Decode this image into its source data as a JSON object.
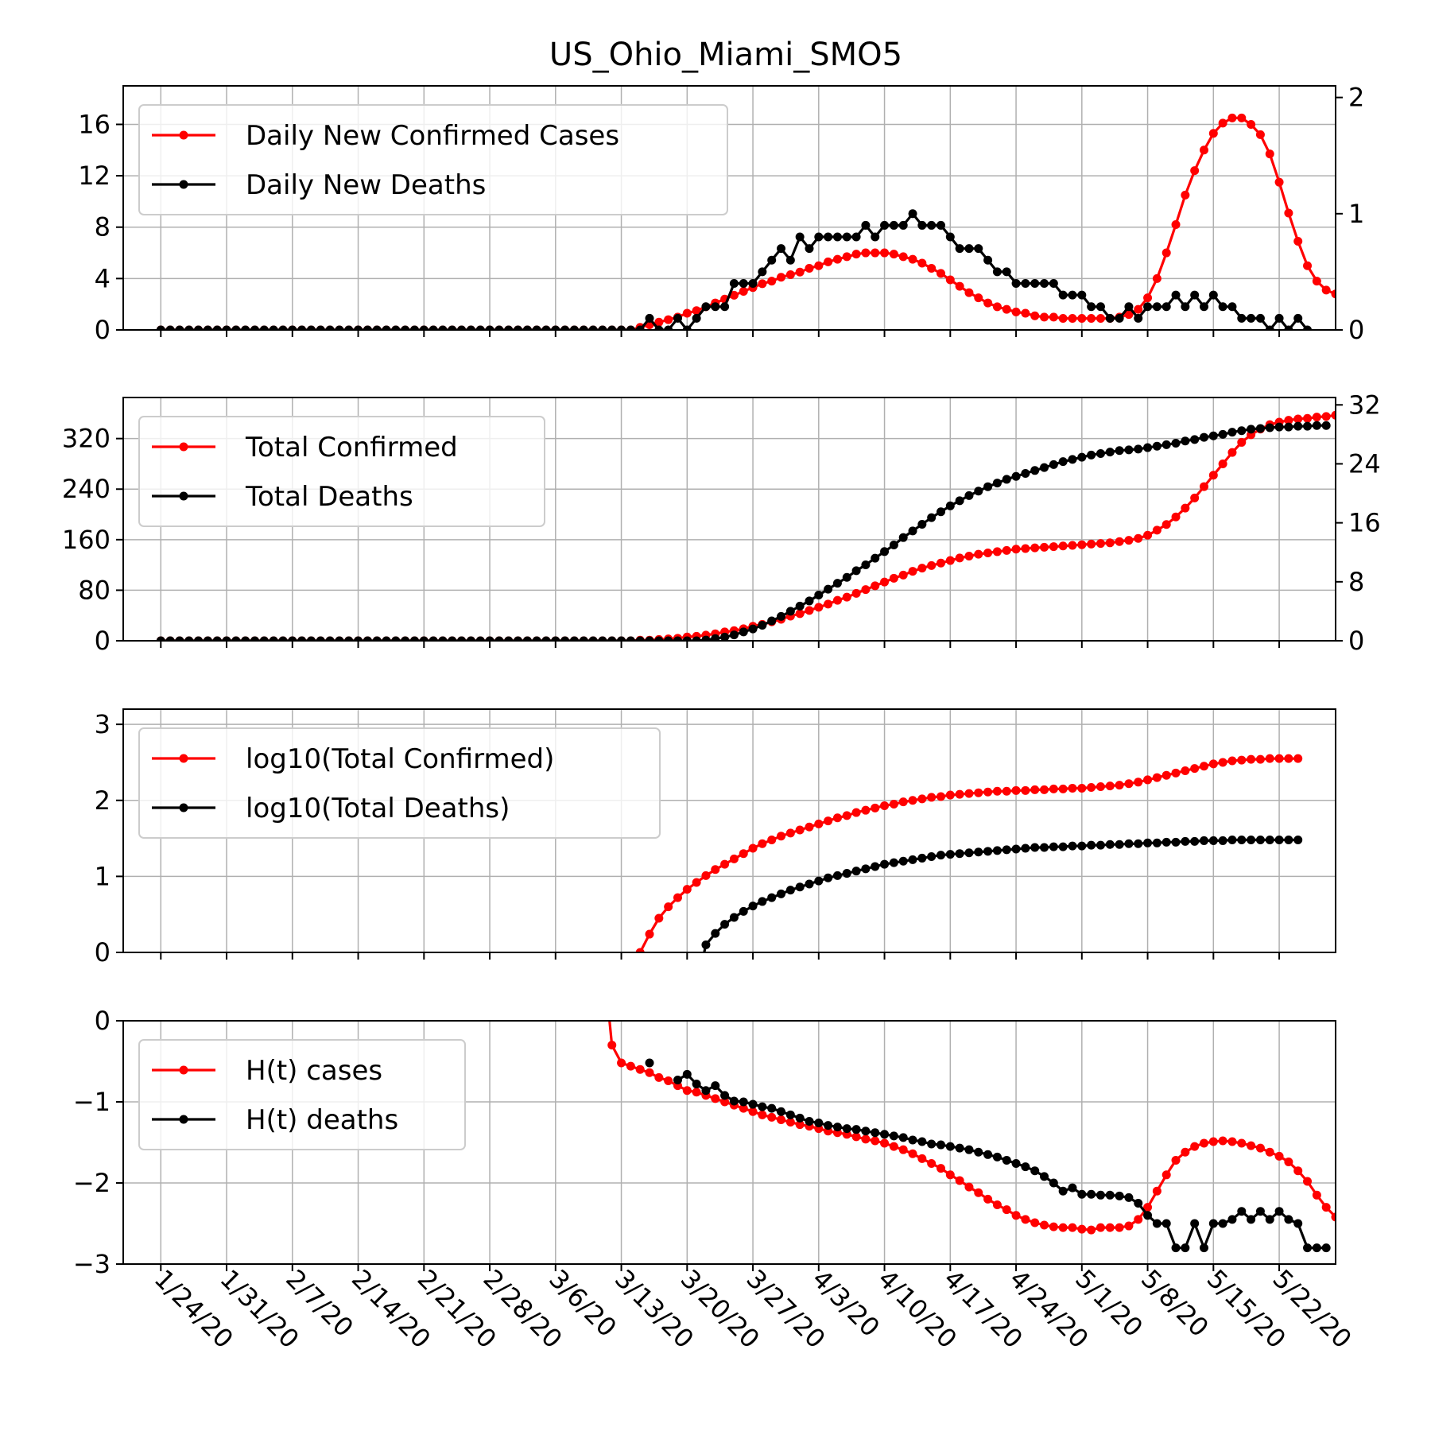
{
  "figure": {
    "title": "US_Ohio_Miami_SMO5",
    "x_tick_labels": [
      "1/24/20",
      "1/31/20",
      "2/7/20",
      "2/14/20",
      "2/21/20",
      "2/28/20",
      "3/6/20",
      "3/13/20",
      "3/20/20",
      "3/27/20",
      "4/3/20",
      "4/10/20",
      "4/17/20",
      "4/24/20",
      "5/1/20",
      "5/8/20",
      "5/15/20",
      "5/22/20"
    ],
    "colors": {
      "cases": "#ff0000",
      "deaths": "#000000",
      "grid": "#b0b0b0"
    }
  },
  "chart_data": [
    {
      "type": "line",
      "panel": "daily",
      "x_start": "1/24/20",
      "x_end": "5/25/20",
      "grid": true,
      "legend_position": "upper-left",
      "left_axis": {
        "ylim": [
          0,
          19
        ],
        "ticks": [
          0,
          4,
          8,
          12,
          16
        ]
      },
      "right_axis": {
        "ylim": [
          0,
          2.1
        ],
        "ticks": [
          0,
          1,
          2
        ]
      },
      "series": [
        {
          "name": "Daily New Confirmed Cases",
          "axis": "left",
          "start": "1/24/20",
          "values": [
            0,
            0,
            0,
            0,
            0,
            0,
            0,
            0,
            0,
            0,
            0,
            0,
            0,
            0,
            0,
            0,
            0,
            0,
            0,
            0,
            0,
            0,
            0,
            0,
            0,
            0,
            0,
            0,
            0,
            0,
            0,
            0,
            0,
            0,
            0,
            0,
            0,
            0,
            0,
            0,
            0,
            0,
            0,
            0,
            0,
            0,
            0,
            0,
            0,
            0,
            0,
            0.2,
            0.4,
            0.6,
            0.8,
            1.0,
            1.3,
            1.5,
            1.8,
            2.1,
            2.4,
            2.7,
            3.0,
            3.3,
            3.6,
            3.8,
            4.1,
            4.3,
            4.5,
            4.8,
            5.0,
            5.3,
            5.5,
            5.7,
            5.9,
            6.0,
            6.0,
            6.0,
            5.9,
            5.7,
            5.5,
            5.2,
            4.8,
            4.4,
            3.9,
            3.4,
            2.9,
            2.5,
            2.1,
            1.8,
            1.6,
            1.4,
            1.3,
            1.1,
            1.0,
            1.0,
            0.9,
            0.9,
            0.9,
            0.9,
            0.9,
            0.9,
            1.0,
            1.2,
            1.6,
            2.5,
            4.0,
            6.0,
            8.2,
            10.5,
            12.4,
            14.0,
            15.3,
            16.1,
            16.5,
            16.5,
            16.0,
            15.2,
            13.7,
            11.5,
            9.1,
            6.9,
            5.0,
            3.8,
            3.1,
            2.8,
            2.6,
            2.5,
            2.5,
            2.5,
            2.5,
            2.5
          ]
        },
        {
          "name": "Daily New Deaths",
          "axis": "right",
          "start": "1/24/20",
          "values": [
            0,
            0,
            0,
            0,
            0,
            0,
            0,
            0,
            0,
            0,
            0,
            0,
            0,
            0,
            0,
            0,
            0,
            0,
            0,
            0,
            0,
            0,
            0,
            0,
            0,
            0,
            0,
            0,
            0,
            0,
            0,
            0,
            0,
            0,
            0,
            0,
            0,
            0,
            0,
            0,
            0,
            0,
            0,
            0,
            0,
            0,
            0,
            0,
            0,
            0,
            0,
            0,
            0.1,
            0.0,
            0.0,
            0.1,
            0.0,
            0.1,
            0.2,
            0.2,
            0.2,
            0.4,
            0.4,
            0.4,
            0.5,
            0.6,
            0.7,
            0.6,
            0.8,
            0.7,
            0.8,
            0.8,
            0.8,
            0.8,
            0.8,
            0.9,
            0.8,
            0.9,
            0.9,
            0.9,
            1.0,
            0.9,
            0.9,
            0.9,
            0.8,
            0.7,
            0.7,
            0.7,
            0.6,
            0.5,
            0.5,
            0.4,
            0.4,
            0.4,
            0.4,
            0.4,
            0.3,
            0.3,
            0.3,
            0.2,
            0.2,
            0.1,
            0.1,
            0.2,
            0.1,
            0.2,
            0.2,
            0.2,
            0.3,
            0.2,
            0.3,
            0.2,
            0.3,
            0.2,
            0.2,
            0.1,
            0.1,
            0.1,
            0.0,
            0.1,
            0.0,
            0.1,
            0.0
          ]
        }
      ]
    },
    {
      "type": "line",
      "panel": "totals",
      "x_start": "1/24/20",
      "x_end": "5/25/20",
      "grid": true,
      "legend_position": "upper-left",
      "left_axis": {
        "ylim": [
          0,
          385
        ],
        "ticks": [
          0,
          80,
          160,
          240,
          320
        ]
      },
      "right_axis": {
        "ylim": [
          0,
          33
        ],
        "ticks": [
          0,
          8,
          16,
          24,
          32
        ]
      },
      "series": [
        {
          "name": "Total Confirmed",
          "axis": "left",
          "start": "1/24/20",
          "values": [
            0,
            0,
            0,
            0,
            0,
            0,
            0,
            0,
            0,
            0,
            0,
            0,
            0,
            0,
            0,
            0,
            0,
            0,
            0,
            0,
            0,
            0,
            0,
            0,
            0,
            0,
            0,
            0,
            0,
            0,
            0,
            0,
            0,
            0,
            0,
            0,
            0,
            0,
            0,
            0,
            0,
            0,
            0,
            0,
            0,
            0,
            0,
            0,
            0,
            0,
            0,
            1,
            1,
            2,
            3,
            4,
            6,
            7,
            9,
            11,
            14,
            16,
            19,
            23,
            26,
            30,
            34,
            39,
            43,
            48,
            53,
            58,
            64,
            69,
            75,
            81,
            87,
            93,
            99,
            104,
            110,
            115,
            119,
            123,
            127,
            131,
            134,
            137,
            139,
            141,
            143,
            145,
            146,
            147,
            148,
            149,
            150,
            151,
            152,
            153,
            154,
            155,
            157,
            159,
            162,
            167,
            175,
            184,
            196,
            210,
            226,
            244,
            262,
            280,
            298,
            314,
            326,
            335,
            342,
            346,
            349,
            351,
            352,
            354,
            355,
            357,
            359,
            361
          ]
        },
        {
          "name": "Total Deaths",
          "axis": "right",
          "start": "1/24/20",
          "values": [
            0,
            0,
            0,
            0,
            0,
            0,
            0,
            0,
            0,
            0,
            0,
            0,
            0,
            0,
            0,
            0,
            0,
            0,
            0,
            0,
            0,
            0,
            0,
            0,
            0,
            0,
            0,
            0,
            0,
            0,
            0,
            0,
            0,
            0,
            0,
            0,
            0,
            0,
            0,
            0,
            0,
            0,
            0,
            0,
            0,
            0,
            0,
            0,
            0,
            0,
            0,
            0,
            0,
            0,
            0,
            0,
            0,
            0,
            0.1,
            0.3,
            0.5,
            0.8,
            1.2,
            1.6,
            2.1,
            2.7,
            3.3,
            4.0,
            4.7,
            5.4,
            6.2,
            7.0,
            7.8,
            8.6,
            9.5,
            10.3,
            11.2,
            12.1,
            13.0,
            14.0,
            14.9,
            15.8,
            16.7,
            17.5,
            18.3,
            19.0,
            19.7,
            20.3,
            20.9,
            21.4,
            21.9,
            22.3,
            22.7,
            23.1,
            23.5,
            23.9,
            24.3,
            24.6,
            24.9,
            25.2,
            25.4,
            25.6,
            25.8,
            25.9,
            26.0,
            26.2,
            26.4,
            26.6,
            26.8,
            27.1,
            27.3,
            27.6,
            27.8,
            28.0,
            28.3,
            28.5,
            28.7,
            28.8,
            28.9,
            29.0,
            29.0,
            29.1,
            29.1,
            29.2,
            29.2
          ]
        }
      ]
    },
    {
      "type": "line",
      "panel": "log",
      "x_start": "1/24/20",
      "x_end": "5/25/20",
      "grid": true,
      "legend_position": "upper-left",
      "left_axis": {
        "ylim": [
          0,
          3.2
        ],
        "ticks": [
          0,
          1,
          2,
          3
        ]
      },
      "series": [
        {
          "name": "log10(Total Confirmed)",
          "axis": "left",
          "start": "3/15/20",
          "values": [
            0.0,
            0.24,
            0.45,
            0.6,
            0.72,
            0.83,
            0.92,
            1.01,
            1.09,
            1.16,
            1.23,
            1.3,
            1.37,
            1.43,
            1.48,
            1.53,
            1.57,
            1.61,
            1.65,
            1.69,
            1.73,
            1.77,
            1.8,
            1.84,
            1.87,
            1.9,
            1.93,
            1.95,
            1.98,
            2.0,
            2.02,
            2.04,
            2.05,
            2.07,
            2.08,
            2.09,
            2.1,
            2.11,
            2.12,
            2.12,
            2.13,
            2.13,
            2.14,
            2.14,
            2.15,
            2.15,
            2.16,
            2.16,
            2.17,
            2.18,
            2.19,
            2.2,
            2.22,
            2.24,
            2.27,
            2.3,
            2.33,
            2.36,
            2.39,
            2.42,
            2.45,
            2.48,
            2.5,
            2.52,
            2.53,
            2.54,
            2.54,
            2.55,
            2.55,
            2.55,
            2.55
          ]
        },
        {
          "name": "log10(Total Deaths)",
          "axis": "left",
          "start": "3/22/20",
          "values": [
            0.1,
            0.25,
            0.37,
            0.46,
            0.54,
            0.61,
            0.67,
            0.72,
            0.77,
            0.82,
            0.86,
            0.9,
            0.94,
            0.98,
            1.01,
            1.04,
            1.07,
            1.1,
            1.13,
            1.16,
            1.18,
            1.2,
            1.22,
            1.24,
            1.26,
            1.28,
            1.29,
            1.3,
            1.31,
            1.32,
            1.33,
            1.34,
            1.35,
            1.36,
            1.37,
            1.38,
            1.38,
            1.39,
            1.39,
            1.4,
            1.4,
            1.41,
            1.41,
            1.42,
            1.42,
            1.43,
            1.43,
            1.44,
            1.44,
            1.45,
            1.45,
            1.46,
            1.46,
            1.47,
            1.47,
            1.47,
            1.48,
            1.48,
            1.48,
            1.48,
            1.48,
            1.48,
            1.48,
            1.48
          ]
        }
      ]
    },
    {
      "type": "line",
      "panel": "H(t)",
      "x_start": "1/24/20",
      "x_end": "5/25/20",
      "grid": true,
      "legend_position": "upper-left",
      "left_axis": {
        "ylim": [
          -3,
          0
        ],
        "ticks": [
          -3,
          -2,
          -1,
          0
        ],
        "tick_labels": [
          "−3",
          "−2",
          "−1",
          "0"
        ]
      },
      "series": [
        {
          "name": "H(t) cases",
          "axis": "left",
          "start": "3/12/20",
          "values": [
            -0.3,
            -0.52,
            -0.56,
            -0.6,
            -0.64,
            -0.7,
            -0.74,
            -0.8,
            -0.86,
            -0.88,
            -0.92,
            -0.96,
            -1.0,
            -1.04,
            -1.08,
            -1.12,
            -1.16,
            -1.19,
            -1.22,
            -1.25,
            -1.28,
            -1.3,
            -1.33,
            -1.36,
            -1.38,
            -1.4,
            -1.43,
            -1.46,
            -1.48,
            -1.51,
            -1.55,
            -1.59,
            -1.64,
            -1.7,
            -1.76,
            -1.82,
            -1.9,
            -1.97,
            -2.05,
            -2.12,
            -2.2,
            -2.27,
            -2.33,
            -2.4,
            -2.45,
            -2.49,
            -2.52,
            -2.54,
            -2.55,
            -2.55,
            -2.57,
            -2.58,
            -2.55,
            -2.55,
            -2.55,
            -2.53,
            -2.45,
            -2.3,
            -2.1,
            -1.9,
            -1.72,
            -1.62,
            -1.55,
            -1.51,
            -1.49,
            -1.48,
            -1.49,
            -1.51,
            -1.54,
            -1.57,
            -1.62,
            -1.67,
            -1.74,
            -1.85,
            -1.98,
            -2.15,
            -2.3,
            -2.42,
            -2.47,
            -2.49,
            -2.49,
            -2.49,
            -2.5,
            -2.51,
            -2.5
          ]
        },
        {
          "name": "H(t) deaths",
          "axis": "left",
          "start": "3/16/20",
          "values": [
            -0.52,
            null,
            null,
            -0.73,
            -0.66,
            -0.78,
            -0.86,
            -0.8,
            -0.92,
            -0.99,
            -1.0,
            -1.03,
            -1.06,
            -1.08,
            -1.12,
            -1.16,
            -1.2,
            -1.24,
            -1.26,
            -1.29,
            -1.31,
            -1.33,
            -1.34,
            -1.36,
            -1.38,
            -1.4,
            -1.42,
            -1.44,
            -1.47,
            -1.49,
            -1.52,
            -1.53,
            -1.55,
            -1.57,
            -1.59,
            -1.62,
            -1.65,
            -1.68,
            -1.72,
            -1.76,
            -1.8,
            -1.85,
            -1.92,
            -2.0,
            -2.1,
            -2.06,
            -2.14,
            -2.14,
            -2.15,
            -2.15,
            -2.16,
            -2.18,
            -2.25,
            -2.4,
            -2.5,
            -2.5,
            -2.8,
            -2.8,
            -2.5,
            -2.8,
            -2.5,
            -2.5,
            -2.45,
            -2.35,
            -2.45,
            -2.35,
            -2.45,
            -2.35,
            -2.45,
            -2.5,
            -2.8,
            -2.8,
            -2.8,
            null,
            -2.8,
            null,
            null,
            -2.8
          ]
        }
      ]
    }
  ]
}
